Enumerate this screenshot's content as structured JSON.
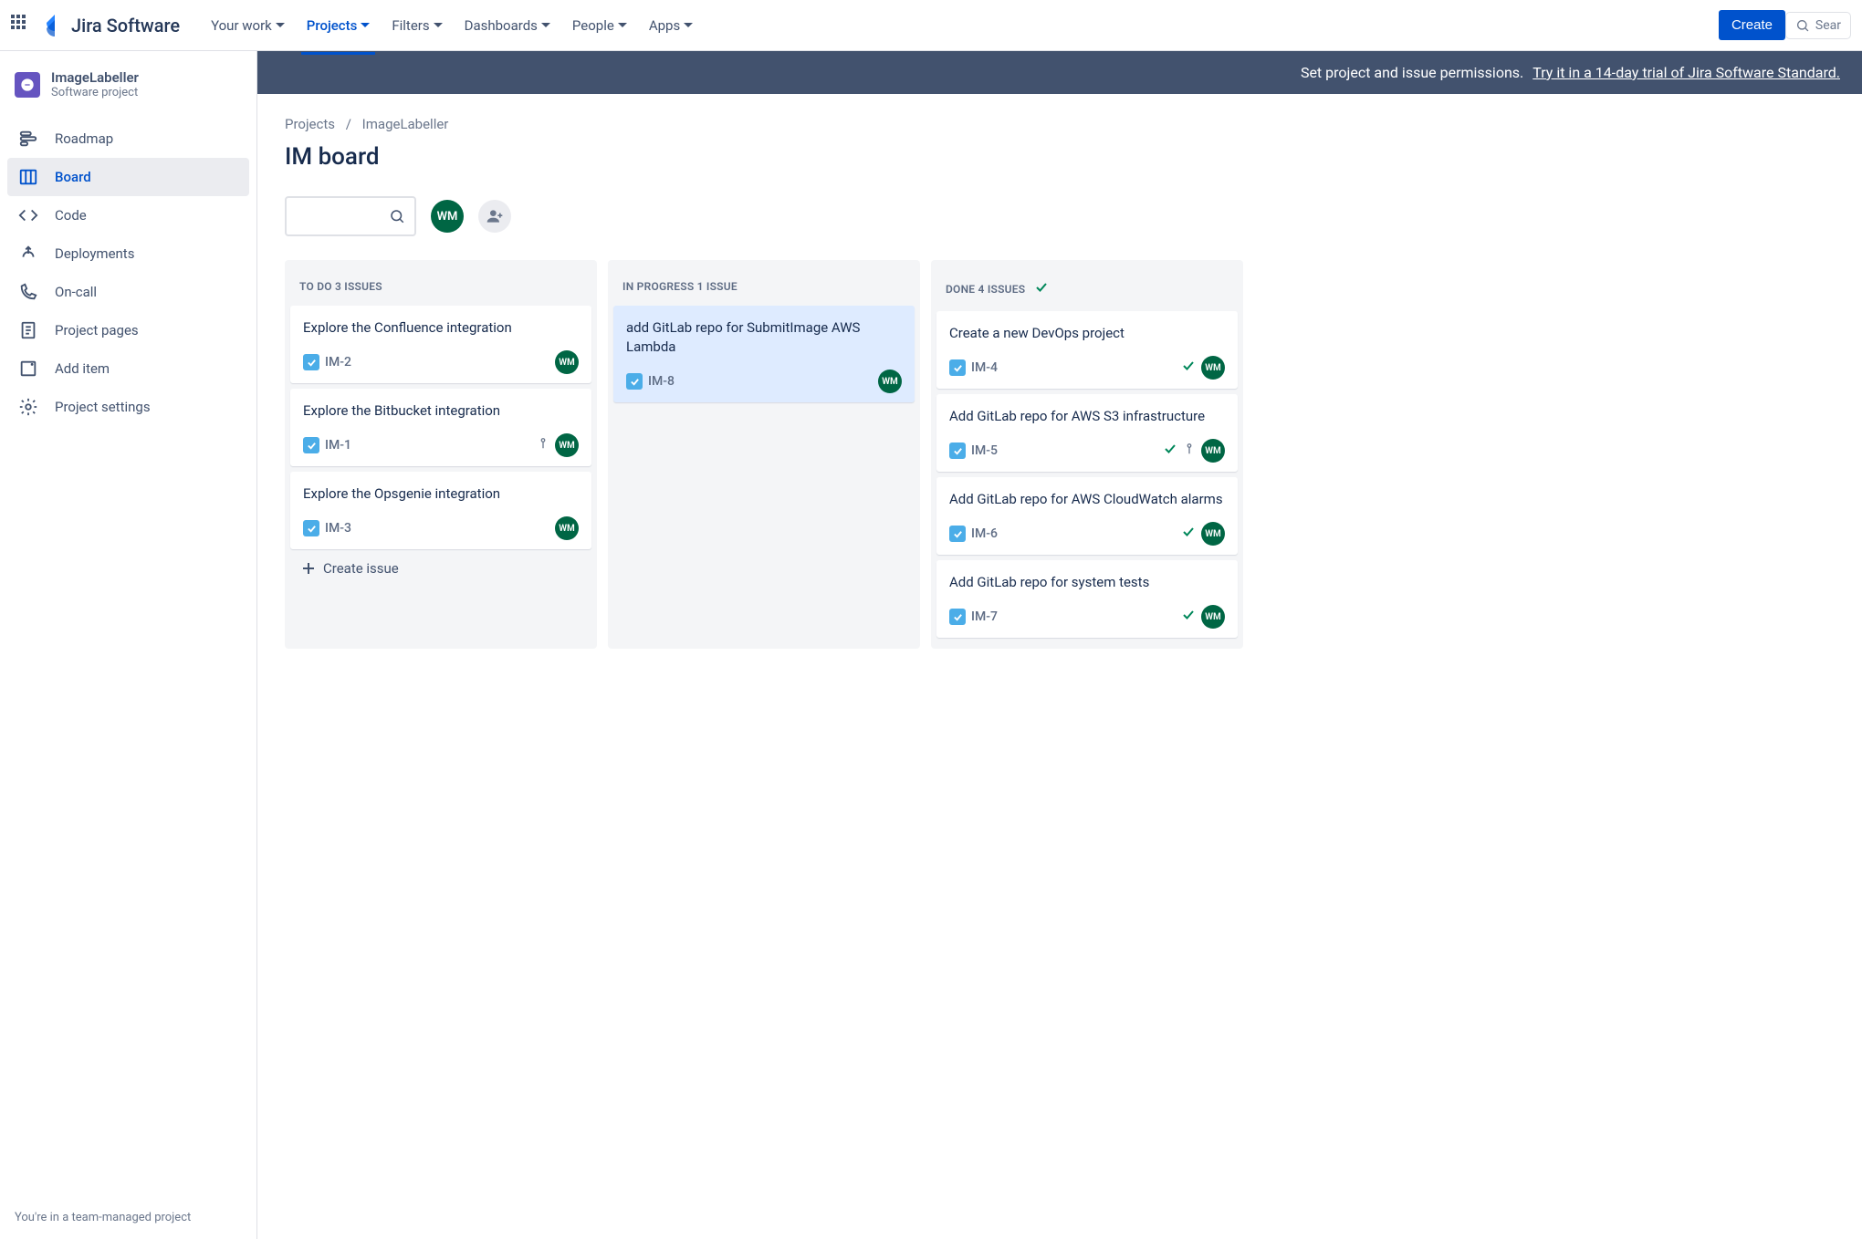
{
  "topnav": {
    "product": "Jira Software",
    "items": [
      {
        "label": "Your work",
        "active": false
      },
      {
        "label": "Projects",
        "active": true
      },
      {
        "label": "Filters",
        "active": false
      },
      {
        "label": "Dashboards",
        "active": false
      },
      {
        "label": "People",
        "active": false
      },
      {
        "label": "Apps",
        "active": false
      }
    ],
    "create": "Create",
    "search_placeholder": "Sear"
  },
  "sidebar": {
    "project_name": "ImageLabeller",
    "project_type": "Software project",
    "items": [
      {
        "label": "Roadmap",
        "icon": "roadmap"
      },
      {
        "label": "Board",
        "icon": "board",
        "active": true
      },
      {
        "label": "Code",
        "icon": "code"
      },
      {
        "label": "Deployments",
        "icon": "deploy"
      },
      {
        "label": "On-call",
        "icon": "oncall"
      },
      {
        "label": "Project pages",
        "icon": "pages"
      },
      {
        "label": "Add item",
        "icon": "add"
      },
      {
        "label": "Project settings",
        "icon": "settings"
      }
    ],
    "footer": "You're in a team-managed project"
  },
  "banner": {
    "text": "Set project and issue permissions.",
    "link": "Try it in a 14-day trial of Jira Software Standard."
  },
  "breadcrumb": {
    "root": "Projects",
    "current": "ImageLabeller"
  },
  "page_title": "IM board",
  "avatar_initials": "WM",
  "columns": [
    {
      "header": "TO DO 3 ISSUES",
      "done": false,
      "cards": [
        {
          "title": "Explore the Confluence integration",
          "key": "IM-2",
          "assignee": "WM"
        },
        {
          "title": "Explore the Bitbucket integration",
          "key": "IM-1",
          "assignee": "WM",
          "priority": true
        },
        {
          "title": "Explore the Opsgenie integration",
          "key": "IM-3",
          "assignee": "WM"
        }
      ],
      "create_label": "Create issue"
    },
    {
      "header": "IN PROGRESS 1 ISSUE",
      "done": false,
      "cards": [
        {
          "title": "add GitLab repo for SubmitImage AWS Lambda",
          "key": "IM-8",
          "assignee": "WM",
          "highlight": true
        }
      ]
    },
    {
      "header": "DONE 4 ISSUES",
      "done": true,
      "cards": [
        {
          "title": "Create a new DevOps project",
          "key": "IM-4",
          "assignee": "WM",
          "done": true
        },
        {
          "title": "Add GitLab repo for AWS S3 infrastructure",
          "key": "IM-5",
          "assignee": "WM",
          "done": true,
          "priority": true
        },
        {
          "title": "Add GitLab repo for AWS CloudWatch alarms",
          "key": "IM-6",
          "assignee": "WM",
          "done": true
        },
        {
          "title": "Add GitLab repo for system tests",
          "key": "IM-7",
          "assignee": "WM",
          "done": true
        }
      ]
    }
  ]
}
